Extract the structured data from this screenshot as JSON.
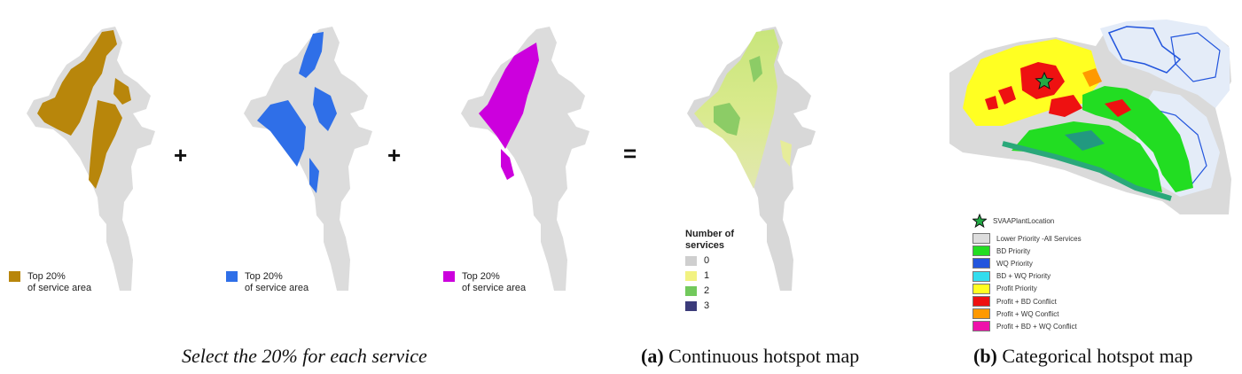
{
  "operators": {
    "plus1": "+",
    "plus2": "+",
    "equals": "="
  },
  "maps": {
    "biodiversity": {
      "legend_label": "Top 20%\nof service area",
      "color": "#b8860b",
      "gray": "#dcdcdc"
    },
    "water": {
      "legend_label": "Top 20%\nof service area",
      "color": "#2f6fe8",
      "gray": "#dcdcdc"
    },
    "profit": {
      "legend_label": "Top 20%\nof service area",
      "color": "#cc00dd",
      "gray": "#dcdcdc"
    }
  },
  "continuous": {
    "legend_title": "Number of\nservices",
    "items": [
      {
        "label": "0",
        "color": "#cfcfcf"
      },
      {
        "label": "1",
        "color": "#f2f281"
      },
      {
        "label": "2",
        "color": "#72c95c"
      },
      {
        "label": "3",
        "color": "#3b3b7a"
      }
    ]
  },
  "categorical": {
    "plant_label": "SVAAPlantLocation",
    "items": [
      {
        "label": "Lower Priority -All Services",
        "color": "#dddddd"
      },
      {
        "label": "BD Priority",
        "color": "#22dd22"
      },
      {
        "label": "WQ Priority",
        "color": "#2255dd"
      },
      {
        "label": "BD + WQ Priority",
        "color": "#33ddee"
      },
      {
        "label": "Profit Priority",
        "color": "#ffff22"
      },
      {
        "label": "Profit + BD Conflict",
        "color": "#ee1111"
      },
      {
        "label": "Profit + WQ Conflict",
        "color": "#ff9900"
      },
      {
        "label": "Profit + BD + WQ Conflict",
        "color": "#ee11aa"
      }
    ]
  },
  "captions": {
    "left": "Select the 20% for each service",
    "a_label": "(a)",
    "a_text": " Continuous hotspot map",
    "b_label": "(b)",
    "b_text": " Categorical hotspot map"
  }
}
